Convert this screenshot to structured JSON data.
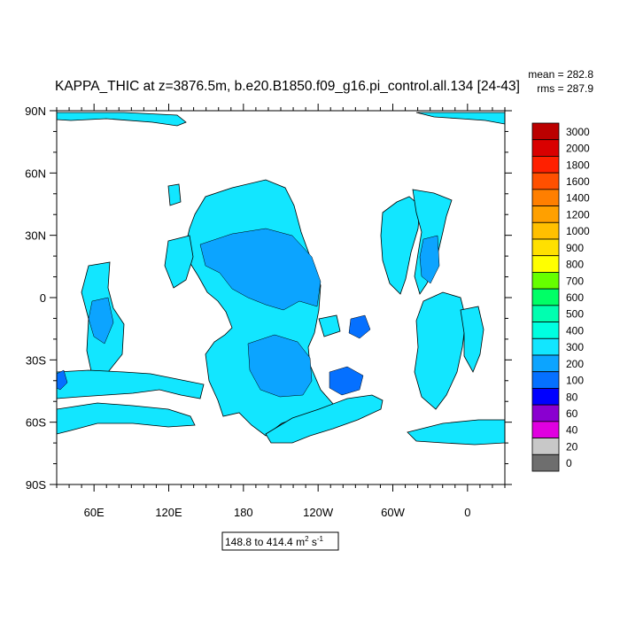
{
  "header": {
    "title": "KAPPA_THIC at z=3876.5m, b.e20.B1850.f09_g16.pi_control.all.134 [24-43]",
    "stats": {
      "mean_label": "mean = 282.8",
      "rms_label": "rms = 287.9"
    }
  },
  "map": {
    "lat_labels": [
      "90N",
      "60N",
      "30N",
      "0",
      "30S",
      "60S",
      "90S"
    ],
    "lon_labels": [
      "60E",
      "120E",
      "180",
      "120W",
      "60W",
      "0"
    ],
    "colors": {
      "land": "#ffffff",
      "ocean_main": "#12e6ff",
      "ocean_mid": "#0ca4ff",
      "ocean_deep": "#0570ff",
      "coast": "#000000"
    }
  },
  "colorbar": {
    "levels": [
      "3000",
      "2000",
      "1800",
      "1600",
      "1400",
      "1200",
      "1000",
      "900",
      "800",
      "700",
      "600",
      "500",
      "400",
      "300",
      "200",
      "100",
      "80",
      "60",
      "40",
      "20",
      "0"
    ],
    "colors": [
      "#bb0000",
      "#d90000",
      "#ff2000",
      "#ff5000",
      "#ff7f00",
      "#ffa000",
      "#ffc000",
      "#ffe000",
      "#ffff00",
      "#66ff00",
      "#00ff66",
      "#00ffb0",
      "#00ffe0",
      "#12e6ff",
      "#0ca4ff",
      "#0570ff",
      "#0000ff",
      "#8a00d0",
      "#e000e0",
      "#c8c8c8",
      "#6e6e6e"
    ]
  },
  "range_box": {
    "prefix": "148.8 to 414.4 m",
    "sup1": "2",
    "mid": " s",
    "sup2": "-1"
  }
}
